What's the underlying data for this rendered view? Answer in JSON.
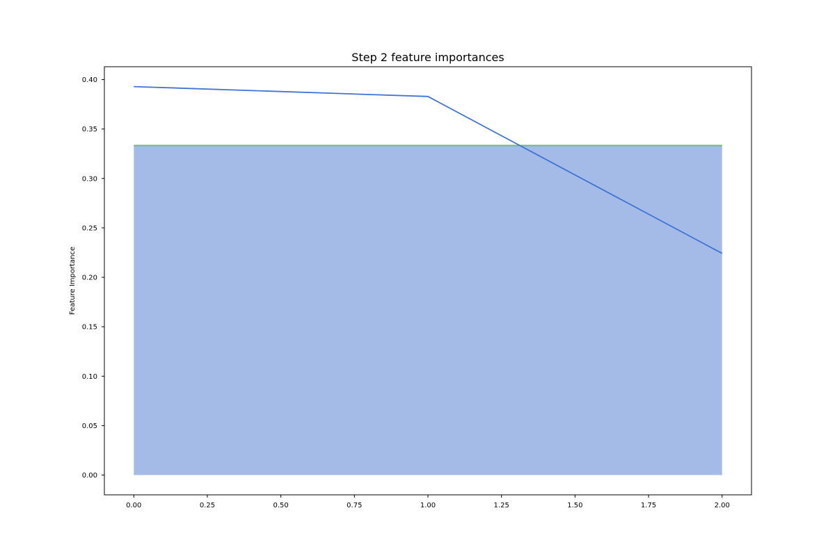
{
  "chart_data": {
    "type": "line",
    "title": "Step 2 feature importances",
    "xlabel": "",
    "ylabel": "Feature Importance",
    "xlim": [
      -0.1,
      2.1
    ],
    "ylim": [
      -0.02,
      0.413
    ],
    "grid": false,
    "x_ticks": [
      0.0,
      0.25,
      0.5,
      0.75,
      1.0,
      1.25,
      1.5,
      1.75,
      2.0
    ],
    "x_tick_labels": [
      "0.00",
      "0.25",
      "0.50",
      "0.75",
      "1.00",
      "1.25",
      "1.50",
      "1.75",
      "2.00"
    ],
    "y_ticks": [
      0.0,
      0.05,
      0.1,
      0.15,
      0.2,
      0.25,
      0.3,
      0.35,
      0.4
    ],
    "y_tick_labels": [
      "0.00",
      "0.05",
      "0.10",
      "0.15",
      "0.20",
      "0.25",
      "0.30",
      "0.35",
      "0.40"
    ],
    "series": [
      {
        "kind": "area",
        "x": [
          0,
          2
        ],
        "y": [
          0.3333,
          0.3333
        ],
        "fill_color": "#a5bbe7",
        "line_color": "#6abf69"
      },
      {
        "kind": "line",
        "x": [
          0,
          1,
          2
        ],
        "y": [
          0.3929,
          0.3829,
          0.2242
        ],
        "color": "#3f74d4"
      }
    ]
  }
}
